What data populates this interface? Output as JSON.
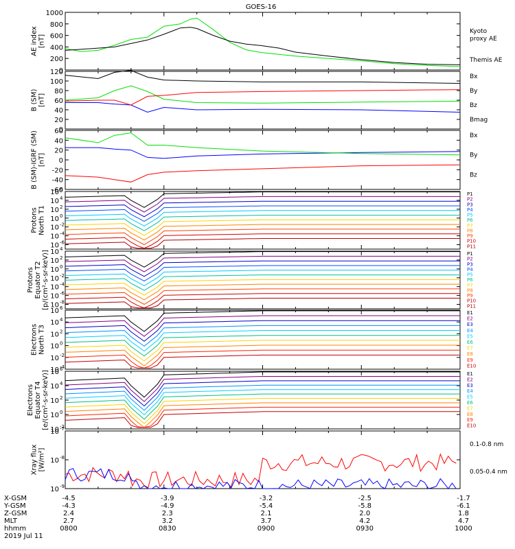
{
  "title": "GOES-16",
  "chart_data": [
    {
      "type": "line",
      "panel": "ae",
      "ylabel": [
        "AE index",
        "[nT]"
      ],
      "ylim": [
        0,
        1000
      ],
      "yticks": [
        "0",
        "200",
        "400",
        "600",
        "800",
        "1000"
      ],
      "yticks_v": [
        0,
        200,
        400,
        600,
        800,
        1000
      ],
      "log": false,
      "series": [
        {
          "name": "Kyoto proxy AE",
          "label_lines": [
            "Kyoto",
            "proxy AE"
          ],
          "color": "#00e000",
          "x": [
            0,
            5,
            10,
            15,
            20,
            25,
            30,
            35,
            38,
            40,
            45,
            50,
            55,
            60,
            65,
            70,
            80,
            90,
            100,
            110,
            120
          ],
          "y": [
            370,
            320,
            340,
            430,
            530,
            570,
            760,
            800,
            880,
            900,
            700,
            480,
            350,
            300,
            270,
            240,
            200,
            160,
            110,
            80,
            60
          ]
        },
        {
          "name": "Themis AE",
          "label_lines": [
            "Themis AE"
          ],
          "color": "#000000",
          "x": [
            0,
            5,
            10,
            15,
            20,
            25,
            30,
            35,
            38,
            40,
            45,
            50,
            55,
            60,
            65,
            70,
            80,
            90,
            100,
            110,
            120
          ],
          "y": [
            340,
            360,
            380,
            400,
            460,
            520,
            620,
            730,
            740,
            720,
            600,
            500,
            450,
            420,
            380,
            310,
            240,
            180,
            130,
            100,
            90
          ]
        }
      ]
    },
    {
      "type": "line",
      "panel": "bsm",
      "ylabel": [
        "B (SM)",
        "[nT]"
      ],
      "ylim": [
        0,
        120
      ],
      "yticks": [
        "0",
        "20",
        "40",
        "60",
        "80",
        "100",
        "120"
      ],
      "yticks_v": [
        0,
        20,
        40,
        60,
        80,
        100,
        120
      ],
      "log": false,
      "series": [
        {
          "name": "Bx",
          "color": "#0000ff",
          "x": [
            0,
            10,
            15,
            20,
            25,
            30,
            40,
            60,
            90,
            120
          ],
          "y": [
            55,
            55,
            52,
            50,
            35,
            45,
            40,
            41,
            40,
            35
          ]
        },
        {
          "name": "By",
          "color": "#00e000",
          "x": [
            0,
            10,
            15,
            20,
            25,
            30,
            40,
            60,
            90,
            120
          ],
          "y": [
            60,
            65,
            80,
            90,
            78,
            62,
            55,
            54,
            56,
            58
          ]
        },
        {
          "name": "Bz",
          "color": "#ff0000",
          "x": [
            0,
            10,
            15,
            20,
            25,
            30,
            40,
            60,
            90,
            120
          ],
          "y": [
            58,
            60,
            60,
            50,
            68,
            70,
            76,
            78,
            80,
            82
          ]
        },
        {
          "name": "Bmag",
          "color": "#000000",
          "x": [
            0,
            10,
            15,
            20,
            25,
            30,
            40,
            60,
            90,
            120
          ],
          "y": [
            112,
            105,
            118,
            122,
            108,
            102,
            100,
            98,
            98,
            95
          ]
        }
      ]
    },
    {
      "type": "line",
      "panel": "digrf",
      "ylabel": [
        "B (SM)-IGRF (SM)",
        "[nT]"
      ],
      "ylim": [
        -60,
        60
      ],
      "yticks": [
        "-60",
        "-40",
        "-20",
        "0",
        "20",
        "40",
        "60"
      ],
      "yticks_v": [
        -60,
        -40,
        -20,
        0,
        20,
        40,
        60
      ],
      "log": false,
      "series": [
        {
          "name": "Bx",
          "color": "#0000ff",
          "x": [
            0,
            10,
            15,
            20,
            25,
            30,
            40,
            60,
            90,
            120
          ],
          "y": [
            25,
            25,
            22,
            20,
            5,
            3,
            8,
            12,
            15,
            17
          ]
        },
        {
          "name": "By",
          "color": "#00e000",
          "x": [
            0,
            10,
            15,
            20,
            25,
            30,
            40,
            60,
            90,
            120
          ],
          "y": [
            45,
            35,
            50,
            55,
            30,
            30,
            25,
            18,
            13,
            10
          ]
        },
        {
          "name": "Bz",
          "color": "#ff0000",
          "x": [
            0,
            10,
            15,
            20,
            25,
            30,
            40,
            60,
            90,
            120
          ],
          "y": [
            -32,
            -35,
            -40,
            -45,
            -30,
            -25,
            -22,
            -18,
            -12,
            -10
          ]
        }
      ]
    },
    {
      "type": "line",
      "panel": "prot1",
      "ylabel": [
        "Protons",
        "North T1"
      ],
      "ylim": [
        -7,
        6
      ],
      "yticks": [
        "10",
        "10",
        "10",
        "10",
        "10",
        "10",
        "10"
      ],
      "yticks_exp": [
        "6",
        "4",
        "2",
        "0",
        "-2",
        "-4",
        "-6"
      ],
      "yticks_v": [
        6,
        4,
        2,
        0,
        -2,
        -4,
        -6
      ],
      "log": true,
      "channels": [
        "P1",
        "P2",
        "P3",
        "P4",
        "P5",
        "P6",
        "P7",
        "P8",
        "P9",
        "P10",
        "P11"
      ],
      "channel_colors": [
        "#000000",
        "#800080",
        "#0000cc",
        "#0050ff",
        "#00c8ff",
        "#00c0a0",
        "#ffd000",
        "#ff8000",
        "#ff4000",
        "#d00000",
        "#b00000"
      ]
    },
    {
      "type": "line",
      "panel": "prot2",
      "ylabel": [
        "Protons",
        "Equator T2",
        "[p/(cm²-s-sr-keV)]"
      ],
      "ylim": [
        -9,
        4
      ],
      "yticks": [
        "10",
        "10",
        "10",
        "10",
        "10",
        "10",
        "10"
      ],
      "yticks_exp": [
        "4",
        "2",
        "0",
        "-2",
        "-4",
        "-6",
        "-8"
      ],
      "yticks_v": [
        4,
        2,
        0,
        -2,
        -4,
        -6,
        -8
      ],
      "log": true,
      "channels": [
        "P1",
        "P2",
        "P3",
        "P4",
        "P5",
        "P6",
        "P7",
        "P8",
        "P9",
        "P10",
        "P11"
      ],
      "channel_colors": [
        "#000000",
        "#800080",
        "#0000cc",
        "#0050ff",
        "#00c8ff",
        "#00c0a0",
        "#ffd000",
        "#ff8000",
        "#ff4000",
        "#d00000",
        "#b00000"
      ]
    },
    {
      "type": "line",
      "panel": "elec3",
      "ylabel": [
        "Electrons",
        "North T3"
      ],
      "ylim": [
        -4,
        6
      ],
      "yticks": [
        "10",
        "10",
        "10",
        "10",
        "10",
        "10"
      ],
      "yticks_exp": [
        "6",
        "4",
        "2",
        "0",
        "-2",
        "-4"
      ],
      "yticks_v": [
        6,
        4,
        2,
        0,
        -2,
        -4
      ],
      "log": true,
      "channels": [
        "E1",
        "E2",
        "E3",
        "E4",
        "E5",
        "E6",
        "E7",
        "E8",
        "E9",
        "E10"
      ],
      "channel_colors": [
        "#000000",
        "#800080",
        "#0000cc",
        "#0090ff",
        "#00d0ff",
        "#00c080",
        "#ffd000",
        "#ff8000",
        "#ff2000",
        "#c00000"
      ]
    },
    {
      "type": "line",
      "panel": "elec4",
      "ylabel": [
        "Electrons",
        "Equator T4",
        "[e/(cm²-s-sr-keV)]"
      ],
      "ylim": [
        -2,
        6
      ],
      "yticks": [
        "10",
        "10",
        "10",
        "10",
        "10"
      ],
      "yticks_exp": [
        "6",
        "4",
        "2",
        "0",
        "-2"
      ],
      "yticks_v": [
        6,
        4,
        2,
        0,
        -2
      ],
      "log": true,
      "channels": [
        "E1",
        "E2",
        "E3",
        "E4",
        "E5",
        "E6",
        "E7",
        "E8",
        "E9",
        "E10"
      ],
      "channel_colors": [
        "#000000",
        "#800080",
        "#0000cc",
        "#0090ff",
        "#00d0ff",
        "#00c080",
        "#ffd000",
        "#ff8000",
        "#ff2000",
        "#c00000"
      ]
    },
    {
      "type": "line",
      "panel": "xray",
      "ylabel": [
        "Xray flux",
        "[W/m²]"
      ],
      "ylim": [
        -9,
        -7
      ],
      "yticks": [
        "10",
        "10",
        "10"
      ],
      "yticks_exp": [
        "-7",
        "-8",
        "-9"
      ],
      "yticks_v": [
        -7,
        -8,
        -9
      ],
      "log": true,
      "series": [
        {
          "name": "0.1-0.8 nm",
          "color": "#ff0000"
        },
        {
          "name": "0.05-0.4 nm",
          "color": "#0000ff"
        }
      ]
    }
  ],
  "time_axis": {
    "xlim": [
      0,
      120
    ],
    "rows": [
      {
        "label": "X-GSM",
        "values": [
          "-4.5",
          "-3.9",
          "-3.2",
          "-2.5",
          "-1.7"
        ]
      },
      {
        "label": "Y-GSM",
        "values": [
          "-4.3",
          "-4.9",
          "-5.4",
          "-5.8",
          "-6.1"
        ]
      },
      {
        "label": "Z-GSM",
        "values": [
          "2.4",
          "2.3",
          "2.1",
          "2.0",
          "1.8"
        ]
      },
      {
        "label": "MLT",
        "values": [
          "2.7",
          "3.2",
          "3.7",
          "4.2",
          "4.7"
        ]
      },
      {
        "label": "hhmm",
        "values": [
          "0800",
          "0830",
          "0900",
          "0930",
          "1000"
        ]
      }
    ],
    "date": "2019 Jul 11"
  }
}
